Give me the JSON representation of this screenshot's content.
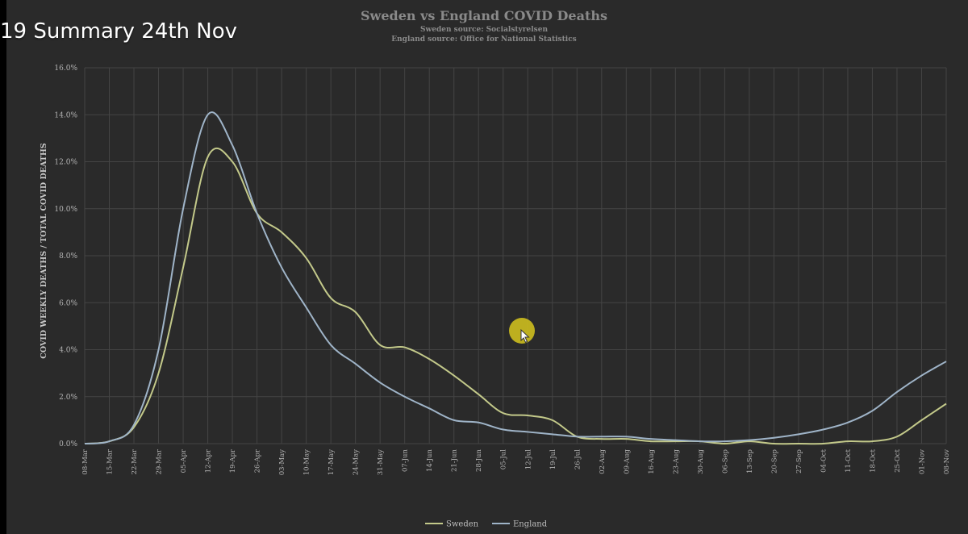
{
  "video_title": "19 Summary 24th Nov",
  "chart_data": {
    "type": "line",
    "title": "Sweden vs England COVID Deaths",
    "subtitle": [
      "Sweden source: Socialstyrelsen",
      "England source: Office for National Statistics"
    ],
    "ylabel": "COVID WEEKLY DEATHS / TOTAL COVID DEATHS",
    "xlabel": "",
    "ylim": [
      0,
      16
    ],
    "yticks": [
      "0.0%",
      "2.0%",
      "4.0%",
      "6.0%",
      "8.0%",
      "10.0%",
      "12.0%",
      "14.0%",
      "16.0%"
    ],
    "grid": true,
    "legend_position": "bottom",
    "categories": [
      "08-Mar",
      "15-Mar",
      "22-Mar",
      "29-Mar",
      "05-Apr",
      "12-Apr",
      "19-Apr",
      "26-Apr",
      "03-May",
      "10-May",
      "17-May",
      "24-May",
      "31-May",
      "07-Jun",
      "14-Jun",
      "21-Jun",
      "28-Jun",
      "05-Jul",
      "12-Jul",
      "19-Jul",
      "26-Jul",
      "02-Aug",
      "09-Aug",
      "16-Aug",
      "23-Aug",
      "30-Aug",
      "06-Sep",
      "13-Sep",
      "20-Sep",
      "27-Sep",
      "04-Oct",
      "11-Oct",
      "18-Oct",
      "25-Oct",
      "01-Nov",
      "08-Nov"
    ],
    "series": [
      {
        "name": "Sweden",
        "color": "#c3c98a",
        "values": [
          0.0,
          0.1,
          0.7,
          3.0,
          7.5,
          12.2,
          12.0,
          9.8,
          9.0,
          7.9,
          6.2,
          5.6,
          4.2,
          4.1,
          3.6,
          2.9,
          2.1,
          1.3,
          1.2,
          1.0,
          0.3,
          0.2,
          0.2,
          0.1,
          0.1,
          0.1,
          0.0,
          0.1,
          0.0,
          0.0,
          0.0,
          0.1,
          0.1,
          0.3,
          1.0,
          1.7
        ]
      },
      {
        "name": "England",
        "color": "#9fb4c8",
        "values": [
          0.0,
          0.1,
          0.8,
          4.0,
          10.0,
          14.0,
          12.7,
          9.8,
          7.5,
          5.8,
          4.2,
          3.4,
          2.6,
          2.0,
          1.5,
          1.0,
          0.9,
          0.6,
          0.5,
          0.4,
          0.3,
          0.3,
          0.3,
          0.2,
          0.15,
          0.1,
          0.1,
          0.15,
          0.25,
          0.4,
          0.6,
          0.9,
          1.4,
          2.2,
          2.9,
          3.5
        ]
      }
    ]
  }
}
